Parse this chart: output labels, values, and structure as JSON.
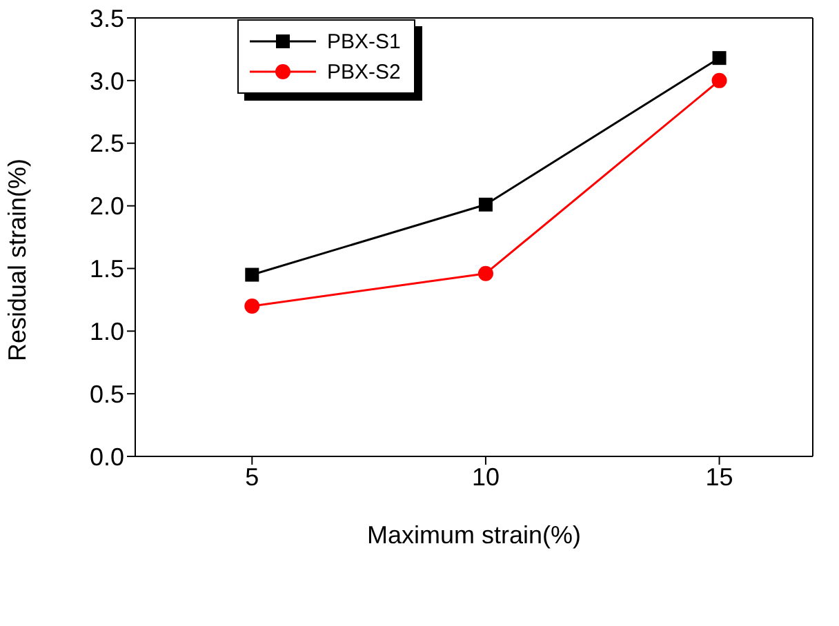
{
  "chart_data": {
    "type": "line",
    "xlabel": "Maximum strain(%)",
    "ylabel": "Residual strain(%)",
    "x": [
      5,
      10,
      15
    ],
    "series": [
      {
        "name": "PBX-S1",
        "color": "#000000",
        "marker": "square",
        "values": [
          1.45,
          2.01,
          3.18
        ]
      },
      {
        "name": "PBX-S2",
        "color": "#ff0000",
        "marker": "circle",
        "values": [
          1.2,
          1.46,
          3.0
        ]
      }
    ],
    "xlim": [
      2.5,
      17
    ],
    "xticks": [
      5,
      10,
      15
    ],
    "ylim": [
      0,
      3.5
    ],
    "yticks": [
      {
        "value": 0,
        "label": "0.0"
      },
      0.5,
      {
        "value": 1,
        "label": "1.0"
      },
      1.5,
      {
        "value": 2,
        "label": "2.0"
      },
      2.5,
      {
        "value": 3,
        "label": "3.0"
      },
      3.5
    ],
    "legend": "top left",
    "line_style": "solid"
  }
}
